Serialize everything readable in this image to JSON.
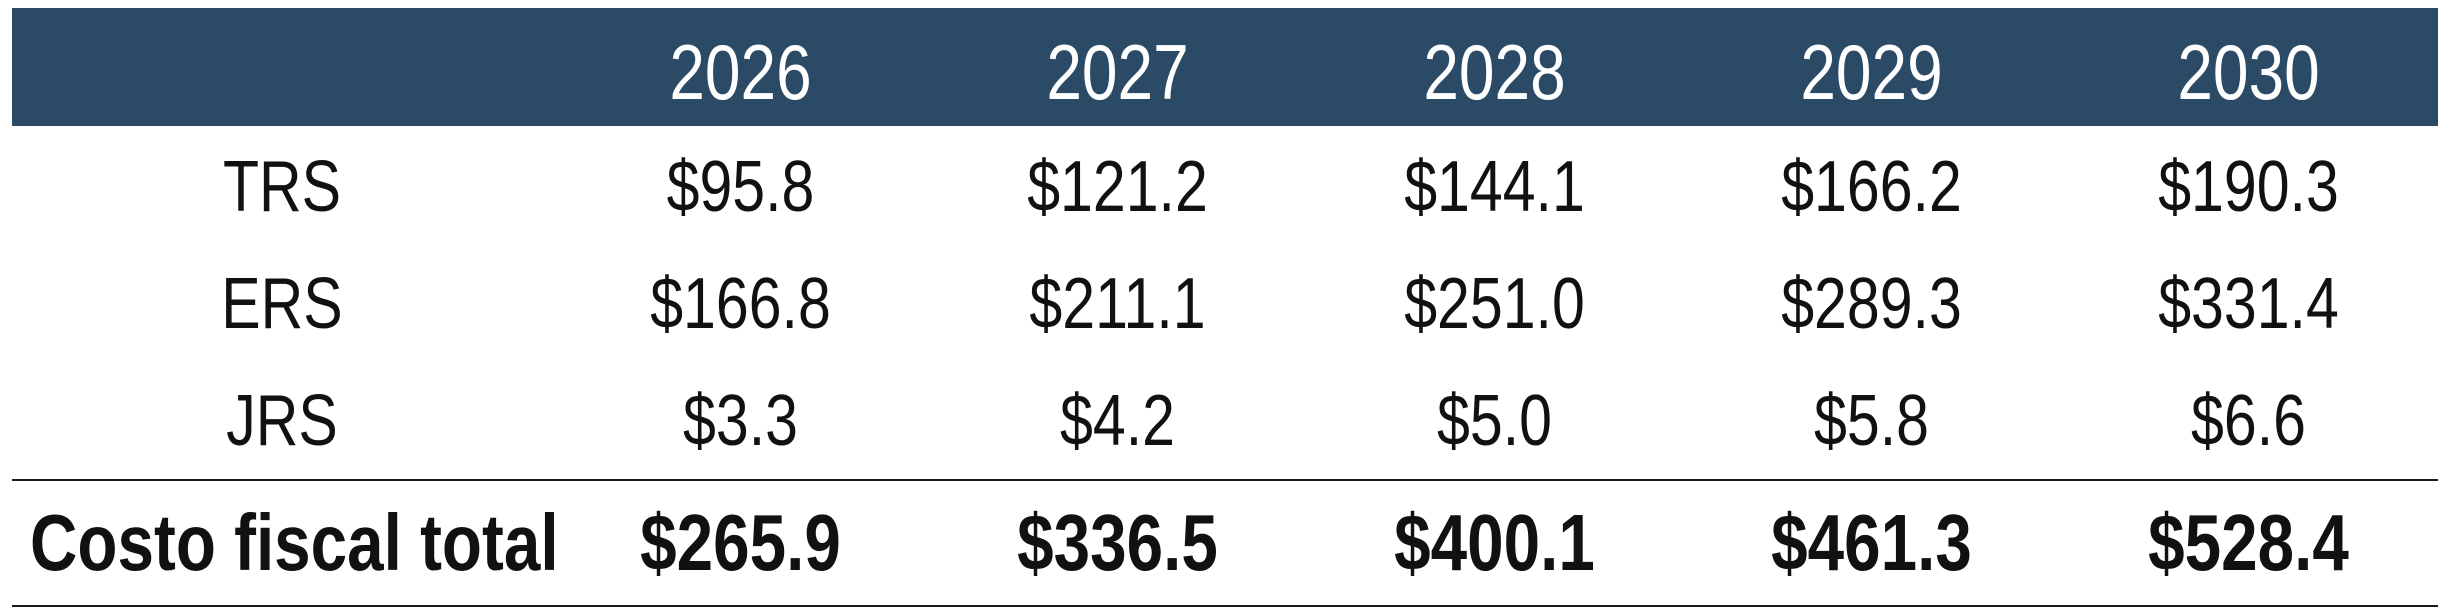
{
  "colors": {
    "header_bg": "#2b4a66",
    "header_text": "#ffffff",
    "body_text": "#111111",
    "rule": "#1a1a1a"
  },
  "chart_data": {
    "type": "table",
    "columns": [
      "",
      "2026",
      "2027",
      "2028",
      "2029",
      "2030"
    ],
    "rows": [
      {
        "label": "TRS",
        "values": [
          "$95.8",
          "$121.2",
          "$144.1",
          "$166.2",
          "$190.3"
        ]
      },
      {
        "label": "ERS",
        "values": [
          "$166.8",
          "$211.1",
          "$251.0",
          "$289.3",
          "$331.4"
        ]
      },
      {
        "label": "JRS",
        "values": [
          "$3.3",
          "$4.2",
          "$5.0",
          "$5.8",
          "$6.6"
        ]
      }
    ],
    "total": {
      "label": "Costo fiscal total",
      "values": [
        "$265.9",
        "$336.5",
        "$400.1",
        "$461.3",
        "$528.4"
      ]
    }
  }
}
